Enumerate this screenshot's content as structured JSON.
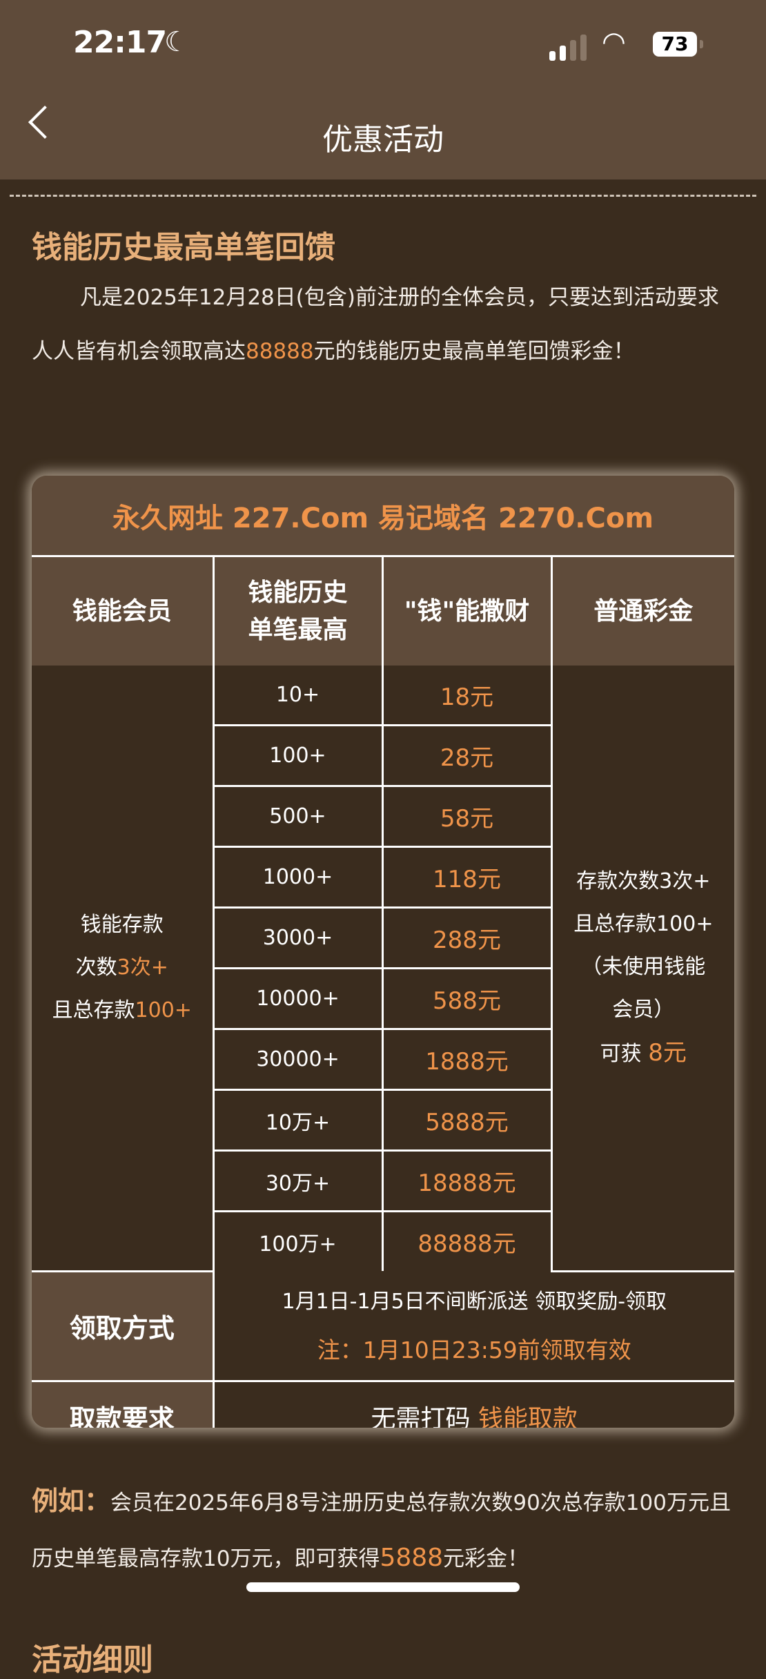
{
  "status_bar": {
    "time": "22:17",
    "battery": "73",
    "moon_icon": "moon-icon",
    "wifi_icon": "wifi-icon",
    "signal_icon": "signal-icon"
  },
  "nav": {
    "title": "优惠活动",
    "back_icon": "chevron-left-icon"
  },
  "promo": {
    "title": "钱能历史最高单笔回馈",
    "para_a": "凡是2025年12月28日(包含)前注册的全体会员，只要达到活动要求人人皆有机会领取高达",
    "para_amount": "88888",
    "para_b": "元的钱能历史最高单笔回馈彩金！"
  },
  "table": {
    "banner": "永久网址 227.Com 易记域名 2270.Com",
    "headers": [
      "钱能会员",
      "钱能历史单笔最高",
      "\"钱\"能撒财",
      "普通彩金"
    ],
    "member_req": {
      "line1": "钱能存款",
      "line2_a": "次数",
      "line2_b": "3次+",
      "line3_a": "且总存款",
      "line3_b": "100+"
    },
    "rows": [
      {
        "tier": "10+",
        "bonus": "18元"
      },
      {
        "tier": "100+",
        "bonus": "28元"
      },
      {
        "tier": "500+",
        "bonus": "58元"
      },
      {
        "tier": "1000+",
        "bonus": "118元"
      },
      {
        "tier": "3000+",
        "bonus": "288元"
      },
      {
        "tier": "10000+",
        "bonus": "588元"
      },
      {
        "tier": "30000+",
        "bonus": "1888元"
      },
      {
        "tier": "10万+",
        "bonus": "5888元"
      },
      {
        "tier": "30万+",
        "bonus": "18888元"
      },
      {
        "tier": "100万+",
        "bonus": "88888元"
      }
    ],
    "normal": {
      "line1": "存款次数3次+",
      "line2": "且总存款100+",
      "line3": "（未使用钱能",
      "line4": "会员）",
      "line5_a": "可获 ",
      "line5_b": "8元"
    },
    "claim_label": "领取方式",
    "claim_text": "1月1日-1月5日不间断派送 领取奖励-领取",
    "claim_note": "注：1月10日23:59前领取有效",
    "withdraw_label": "取款要求",
    "withdraw_a": "无需打码 ",
    "withdraw_b": "钱能取款"
  },
  "example": {
    "label": "例如：",
    "text_a": "会员在2025年6月8号注册历史总存款次数90次总存款100万元且历史单笔最高存款10万元，即可获得",
    "amount": "5888",
    "text_b": "元彩金！"
  },
  "details_title": "活动细则",
  "colors": {
    "accent": "#f0944a",
    "title": "#e8b07a",
    "header_bg": "#5f4b3a",
    "body_bg": "#3a2c1e"
  }
}
